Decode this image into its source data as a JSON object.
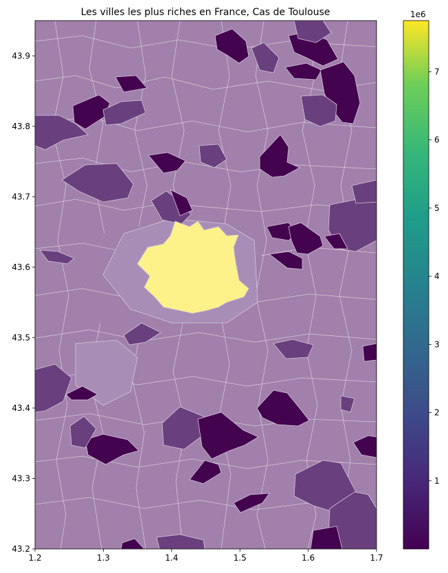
{
  "chart_data": {
    "type": "choropleth",
    "title": "Les villes les plus riches en France, Cas de Toulouse",
    "xlabel": "",
    "ylabel": "",
    "xlim": [
      1.2,
      1.7
    ],
    "ylim": [
      43.2,
      43.95
    ],
    "x_ticks": [
      "1.2",
      "1.3",
      "1.4",
      "1.5",
      "1.6",
      "1.7"
    ],
    "y_ticks": [
      "43.2",
      "43.3",
      "43.4",
      "43.5",
      "43.6",
      "43.7",
      "43.8",
      "43.9"
    ],
    "colorbar": {
      "colormap": "viridis",
      "range": [
        0,
        7750000
      ],
      "ticks": [
        "1",
        "2",
        "3",
        "4",
        "5",
        "6",
        "7"
      ],
      "offset_label": "1e6"
    },
    "highlighted_region": {
      "name": "Toulouse",
      "value": 7750000,
      "center": [
        1.44,
        43.6
      ]
    },
    "grid": false,
    "colors": {
      "base_region": "#a180ab",
      "low": "#44034f",
      "mid_low": "#6a3f7e",
      "medium": "#8a5a98",
      "highlight": "#fdf18a",
      "boundary": "#d4c7d8"
    }
  }
}
